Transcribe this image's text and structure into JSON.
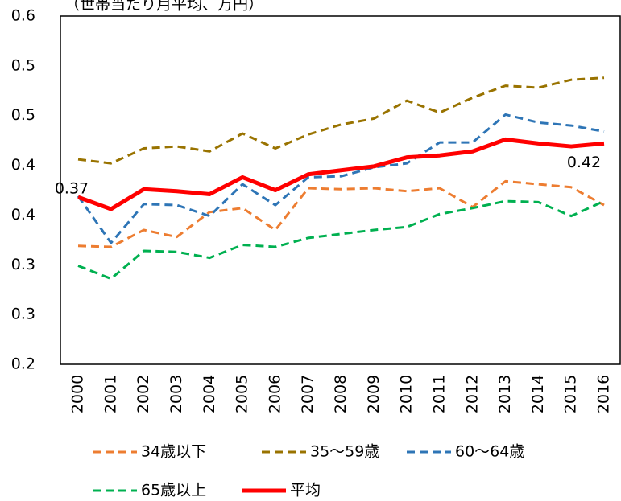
{
  "chart_data": {
    "type": "line",
    "title": "（世帯当たり月平均、万円）",
    "categories": [
      "2000",
      "2001",
      "2002",
      "2003",
      "2004",
      "2005",
      "2006",
      "2007",
      "2008",
      "2009",
      "2010",
      "2011",
      "2012",
      "2013",
      "2014",
      "2015",
      "2016"
    ],
    "ylim": [
      0.2,
      0.55
    ],
    "yticks": [
      {
        "value": 0.2,
        "label": "0.2"
      },
      {
        "value": 0.25,
        "label": "0.3"
      },
      {
        "value": 0.3,
        "label": "0.3"
      },
      {
        "value": 0.35,
        "label": "0.4"
      },
      {
        "value": 0.4,
        "label": "0.4"
      },
      {
        "value": 0.45,
        "label": "0.5"
      },
      {
        "value": 0.5,
        "label": "0.5"
      },
      {
        "value": 0.55,
        "label": "0.6"
      }
    ],
    "grid": false,
    "legend": "bottom",
    "series": [
      {
        "name": "34歳以下",
        "color": "#ed7d31",
        "dash": true,
        "values": [
          0.319,
          0.318,
          0.335,
          0.328,
          0.353,
          0.357,
          0.335,
          0.377,
          0.376,
          0.377,
          0.374,
          0.377,
          0.358,
          0.384,
          0.381,
          0.378,
          0.36
        ]
      },
      {
        "name": "35〜59歳",
        "color": "#997300",
        "dash": true,
        "values": [
          0.406,
          0.402,
          0.417,
          0.419,
          0.414,
          0.432,
          0.417,
          0.431,
          0.441,
          0.447,
          0.465,
          0.453,
          0.468,
          0.48,
          0.478,
          0.486,
          0.488
        ]
      },
      {
        "name": "60〜64歳",
        "color": "#2e75b6",
        "dash": true,
        "values": [
          0.369,
          0.322,
          0.361,
          0.36,
          0.349,
          0.381,
          0.36,
          0.388,
          0.389,
          0.398,
          0.402,
          0.423,
          0.423,
          0.451,
          0.443,
          0.44,
          0.434
        ]
      },
      {
        "name": "65歳以上",
        "color": "#00b050",
        "dash": true,
        "values": [
          0.299,
          0.286,
          0.314,
          0.313,
          0.307,
          0.32,
          0.318,
          0.327,
          0.331,
          0.335,
          0.338,
          0.351,
          0.357,
          0.364,
          0.363,
          0.349,
          0.364
        ]
      },
      {
        "name": "平均",
        "color": "#ff0000",
        "dash": false,
        "values": [
          0.368,
          0.356,
          0.376,
          0.374,
          0.371,
          0.388,
          0.375,
          0.391,
          0.395,
          0.399,
          0.408,
          0.41,
          0.414,
          0.426,
          0.422,
          0.419,
          0.422
        ],
        "value_labels": [
          "0.37",
          null,
          null,
          null,
          null,
          null,
          null,
          null,
          null,
          null,
          null,
          null,
          null,
          null,
          null,
          null,
          "0.42"
        ]
      }
    ]
  }
}
